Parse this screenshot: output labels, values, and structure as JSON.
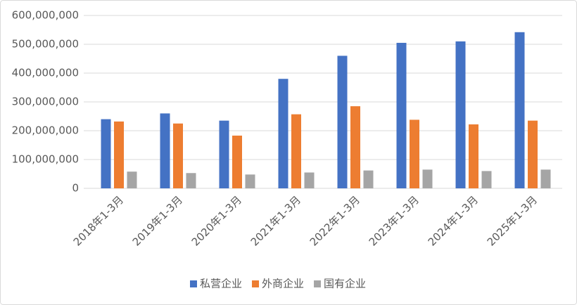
{
  "chart_data": {
    "type": "bar",
    "categories": [
      "2018年1-3月",
      "2019年1-3月",
      "2020年1-3月",
      "2021年1-3月",
      "2022年1-3月",
      "2023年1-3月",
      "2024年1-3月",
      "2025年1-3月"
    ],
    "series": [
      {
        "name": "私营企业",
        "color": "#4472c4",
        "values": [
          240000000,
          260000000,
          235000000,
          380000000,
          460000000,
          505000000,
          510000000,
          542000000
        ]
      },
      {
        "name": "外商企业",
        "color": "#ed7d31",
        "values": [
          232000000,
          225000000,
          183000000,
          257000000,
          285000000,
          238000000,
          222000000,
          235000000
        ]
      },
      {
        "name": "国有企业",
        "color": "#a5a5a5",
        "values": [
          58000000,
          53000000,
          48000000,
          55000000,
          62000000,
          65000000,
          60000000,
          65000000
        ]
      }
    ],
    "ylim": [
      0,
      600000000
    ],
    "yticks": [
      0,
      {
        "value": 100000000,
        "label": "100,000,000"
      },
      {
        "value": 200000000,
        "label": "200,000,000"
      },
      {
        "value": 300000000,
        "label": "300,000,000"
      },
      {
        "value": 400000000,
        "label": "400,000,000"
      },
      {
        "value": 500000000,
        "label": "500,000,000"
      },
      {
        "value": 600000000,
        "label": "600,000,000"
      }
    ],
    "grid": true,
    "legend": "bottom"
  }
}
